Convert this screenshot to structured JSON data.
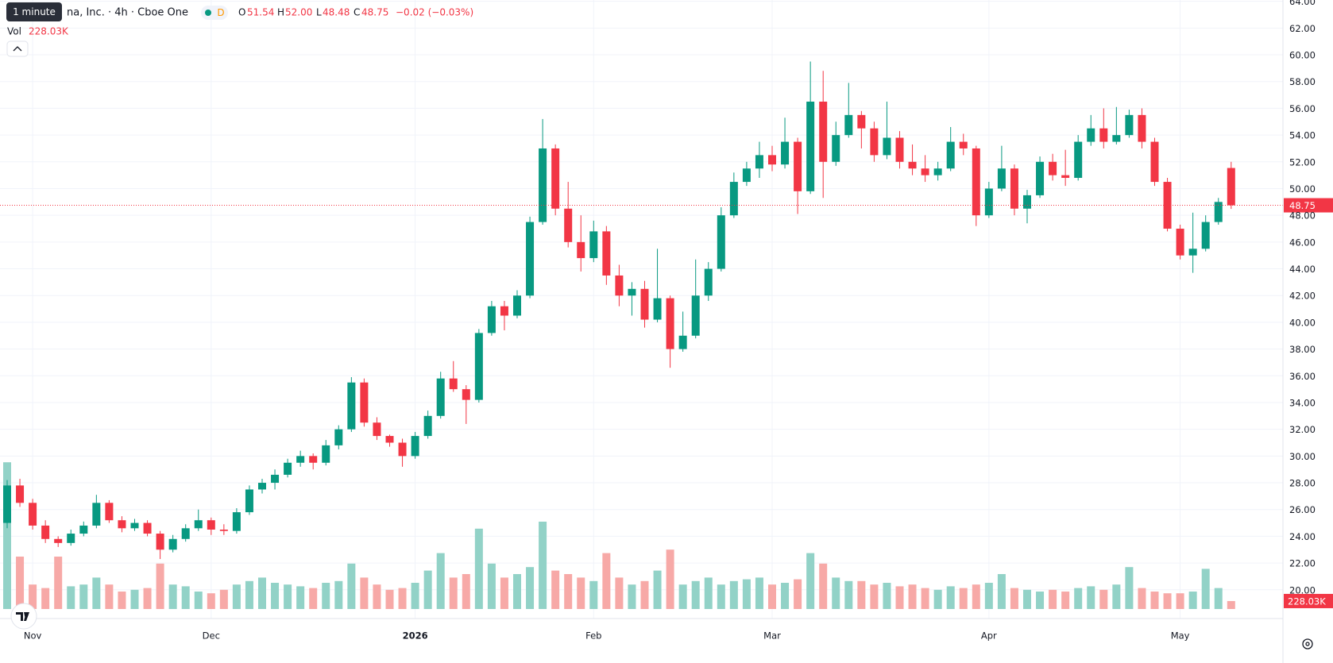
{
  "header": {
    "title": "na, Inc. · 4h · Cboe One",
    "interval_tooltip": "1 minute",
    "exchange_badge": "D",
    "open_label": "O",
    "open": 51.54,
    "high_label": "H",
    "high": {
      "value": 52,
      "label": "52.00"
    },
    "low_label": "L",
    "low": 48.48,
    "close_label": "C",
    "close": 48.75,
    "change": "−0.02 (−0.03%)",
    "volume_label": "Vol"
  },
  "chart_data": {
    "type": "candlestick",
    "ylim": [
      17.85,
      64.1
    ],
    "yticks": [
      {
        "value": 20,
        "label": "20.00"
      },
      {
        "value": 22,
        "label": "22.00"
      },
      {
        "value": 24,
        "label": "24.00"
      },
      {
        "value": 26,
        "label": "26.00"
      },
      {
        "value": 28,
        "label": "28.00"
      },
      {
        "value": 30,
        "label": "30.00"
      },
      {
        "value": 32,
        "label": "32.00"
      },
      {
        "value": 34,
        "label": "34.00"
      },
      {
        "value": 36,
        "label": "36.00"
      },
      {
        "value": 38,
        "label": "38.00"
      },
      {
        "value": 40,
        "label": "40.00"
      },
      {
        "value": 42,
        "label": "42.00"
      },
      {
        "value": 44,
        "label": "44.00"
      },
      {
        "value": 46,
        "label": "46.00"
      },
      {
        "value": 48,
        "label": "48.00"
      },
      {
        "value": 50,
        "label": "50.00"
      },
      {
        "value": 52,
        "label": "52.00"
      },
      {
        "value": 54,
        "label": "54.00"
      },
      {
        "value": 56,
        "label": "56.00"
      },
      {
        "value": 58,
        "label": "58.00"
      },
      {
        "value": 60,
        "label": "60.00"
      },
      {
        "value": 62,
        "label": "62.00"
      },
      {
        "value": 64,
        "label": "64.00"
      }
    ],
    "xticks": [
      {
        "value": 2,
        "label": "Nov"
      },
      {
        "value": 16,
        "label": "Dec"
      },
      {
        "value": 32,
        "label": "2026"
      },
      {
        "value": 46,
        "label": "Feb"
      },
      {
        "value": 60,
        "label": "Mar"
      },
      {
        "value": 77,
        "label": "Apr"
      },
      {
        "value": 92,
        "label": "May"
      }
    ],
    "up_color": "#089981",
    "down_color": "#f23645",
    "up_volume_color": "#92d2c7",
    "down_volume_color": "#f7a9a7",
    "grid": true,
    "last_price": 48.75,
    "volume_last": {
      "value": 228.03,
      "label": "228.03K"
    },
    "ohlc": [
      [
        25.0,
        28.2,
        24.6,
        27.8
      ],
      [
        27.8,
        28.3,
        26.2,
        26.5
      ],
      [
        26.5,
        26.8,
        24.5,
        24.8
      ],
      [
        24.8,
        25.2,
        23.5,
        23.8
      ],
      [
        23.8,
        24.0,
        23.2,
        23.5
      ],
      [
        23.5,
        24.5,
        23.3,
        24.2
      ],
      [
        24.2,
        25.1,
        24.0,
        24.8
      ],
      [
        24.8,
        27.1,
        24.6,
        26.5
      ],
      [
        26.5,
        26.7,
        25.0,
        25.2
      ],
      [
        25.2,
        25.5,
        24.3,
        24.6
      ],
      [
        24.6,
        25.3,
        24.4,
        25.0
      ],
      [
        25.0,
        25.2,
        24.0,
        24.2
      ],
      [
        24.2,
        24.4,
        22.3,
        23.0
      ],
      [
        23.0,
        24.1,
        22.8,
        23.8
      ],
      [
        23.8,
        24.9,
        23.6,
        24.6
      ],
      [
        24.6,
        26.0,
        24.4,
        25.2
      ],
      [
        25.2,
        25.4,
        24.1,
        24.5
      ],
      [
        24.5,
        24.9,
        24.1,
        24.4
      ],
      [
        24.4,
        26.1,
        24.2,
        25.8
      ],
      [
        25.8,
        27.8,
        25.6,
        27.5
      ],
      [
        27.5,
        28.3,
        27.2,
        28.0
      ],
      [
        28.0,
        29.0,
        27.5,
        28.6
      ],
      [
        28.6,
        29.8,
        28.4,
        29.5
      ],
      [
        29.5,
        30.4,
        29.2,
        30.0
      ],
      [
        30.0,
        30.2,
        29.0,
        29.5
      ],
      [
        29.5,
        31.2,
        29.3,
        30.8
      ],
      [
        30.8,
        32.3,
        30.5,
        32.0
      ],
      [
        32.0,
        35.9,
        31.8,
        35.5
      ],
      [
        35.5,
        35.8,
        32.2,
        32.5
      ],
      [
        32.5,
        32.9,
        31.2,
        31.5
      ],
      [
        31.5,
        31.6,
        30.7,
        31.0
      ],
      [
        31.0,
        31.3,
        29.2,
        30.0
      ],
      [
        30.0,
        31.8,
        29.8,
        31.5
      ],
      [
        31.5,
        33.4,
        31.3,
        33.0
      ],
      [
        33.0,
        36.3,
        32.8,
        35.8
      ],
      [
        35.8,
        37.1,
        34.8,
        35.0
      ],
      [
        35.0,
        35.3,
        32.4,
        34.2
      ],
      [
        34.2,
        39.5,
        34.0,
        39.2
      ],
      [
        39.2,
        41.6,
        39.0,
        41.2
      ],
      [
        41.2,
        41.6,
        39.4,
        40.5
      ],
      [
        40.5,
        42.4,
        40.3,
        42.0
      ],
      [
        42.0,
        47.9,
        41.8,
        47.5
      ],
      [
        47.5,
        55.2,
        47.3,
        53.0
      ],
      [
        53.0,
        53.3,
        48.0,
        48.5
      ],
      [
        48.5,
        50.5,
        45.6,
        46.0
      ],
      [
        46.0,
        48.0,
        43.8,
        44.8
      ],
      [
        44.8,
        47.6,
        44.5,
        46.8
      ],
      [
        46.8,
        47.2,
        42.8,
        43.5
      ],
      [
        43.5,
        44.3,
        41.2,
        42.0
      ],
      [
        42.0,
        43.0,
        40.5,
        42.5
      ],
      [
        42.5,
        43.1,
        39.6,
        40.2
      ],
      [
        40.2,
        45.5,
        40.0,
        41.8
      ],
      [
        41.8,
        42.0,
        36.6,
        38.0
      ],
      [
        38.0,
        40.8,
        37.8,
        39.0
      ],
      [
        39.0,
        44.7,
        38.8,
        42.0
      ],
      [
        42.0,
        44.5,
        41.6,
        44.0
      ],
      [
        44.0,
        48.6,
        43.8,
        48.0
      ],
      [
        48.0,
        51.2,
        47.8,
        50.5
      ],
      [
        50.5,
        52.0,
        50.2,
        51.5
      ],
      [
        51.5,
        53.5,
        50.8,
        52.5
      ],
      [
        52.5,
        53.2,
        51.3,
        51.8
      ],
      [
        51.8,
        55.3,
        51.5,
        53.5
      ],
      [
        53.5,
        53.8,
        48.1,
        49.8
      ],
      [
        49.8,
        59.5,
        49.6,
        56.5
      ],
      [
        56.5,
        58.8,
        49.3,
        52.0
      ],
      [
        52.0,
        55.0,
        51.7,
        54.0
      ],
      [
        54.0,
        57.9,
        53.8,
        55.5
      ],
      [
        55.5,
        55.8,
        53.0,
        54.5
      ],
      [
        54.5,
        55.0,
        52.0,
        52.5
      ],
      [
        52.5,
        56.5,
        52.2,
        53.8
      ],
      [
        53.8,
        54.3,
        51.5,
        52.0
      ],
      [
        52.0,
        53.3,
        51.0,
        51.5
      ],
      [
        51.5,
        52.5,
        50.5,
        51.0
      ],
      [
        51.0,
        52.0,
        50.6,
        51.5
      ],
      [
        51.5,
        54.6,
        51.3,
        53.5
      ],
      [
        53.5,
        54.1,
        52.5,
        53.0
      ],
      [
        53.0,
        53.2,
        47.2,
        48.0
      ],
      [
        48.0,
        50.5,
        47.8,
        50.0
      ],
      [
        50.0,
        53.2,
        49.8,
        51.5
      ],
      [
        51.5,
        51.8,
        48.0,
        48.5
      ],
      [
        48.5,
        49.9,
        47.4,
        49.5
      ],
      [
        49.5,
        52.4,
        49.3,
        52.0
      ],
      [
        52.0,
        52.6,
        50.6,
        51.0
      ],
      [
        51.0,
        52.9,
        50.2,
        50.8
      ],
      [
        50.8,
        54.0,
        50.6,
        53.5
      ],
      [
        53.5,
        55.5,
        53.2,
        54.5
      ],
      [
        54.5,
        56.0,
        53.0,
        53.5
      ],
      [
        53.5,
        56.1,
        53.3,
        54.0
      ],
      [
        54.0,
        55.9,
        53.8,
        55.5
      ],
      [
        55.5,
        56.0,
        53.0,
        53.5
      ],
      [
        53.5,
        53.8,
        50.2,
        50.5
      ],
      [
        50.5,
        50.8,
        46.8,
        47.0
      ],
      [
        47.0,
        47.3,
        44.7,
        45.0
      ],
      [
        45.0,
        48.2,
        43.7,
        45.5
      ],
      [
        45.5,
        48.0,
        45.3,
        47.5
      ],
      [
        47.5,
        49.3,
        47.3,
        49.0
      ],
      [
        51.54,
        52.0,
        48.48,
        48.75
      ]
    ],
    "volume": [
      4200,
      1500,
      700,
      600,
      1500,
      650,
      700,
      900,
      700,
      500,
      550,
      600,
      1300,
      700,
      650,
      500,
      450,
      550,
      700,
      800,
      900,
      750,
      700,
      650,
      600,
      750,
      800,
      1300,
      900,
      700,
      550,
      600,
      750,
      1100,
      1600,
      900,
      1000,
      2300,
      1300,
      900,
      1000,
      1200,
      2500,
      1100,
      1000,
      900,
      800,
      1600,
      900,
      700,
      800,
      1100,
      1700,
      700,
      800,
      900,
      700,
      800,
      850,
      900,
      700,
      750,
      850,
      1600,
      1300,
      900,
      800,
      800,
      700,
      750,
      650,
      700,
      600,
      550,
      650,
      600,
      700,
      750,
      1000,
      600,
      550,
      500,
      550,
      500,
      600,
      650,
      550,
      700,
      1200,
      600,
      500,
      450,
      450,
      500,
      1150,
      600,
      228.03
    ]
  }
}
